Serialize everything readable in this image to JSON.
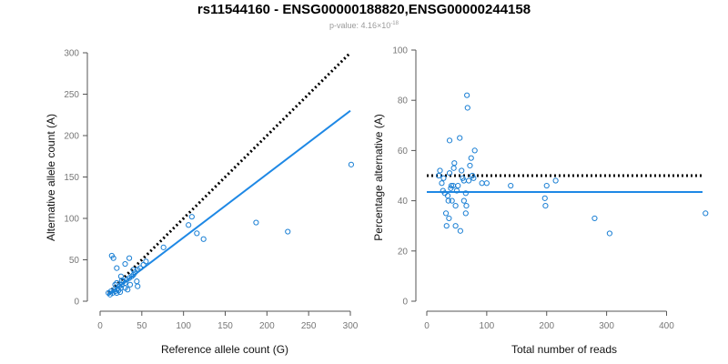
{
  "title": "rs11544160 - ENSG00000188820,ENSG00000244158",
  "subtitle": {
    "prefix": "p-value: 4.16×10",
    "exponent": "-18"
  },
  "colors": {
    "points": "#1a7fd4",
    "fit_line": "#1e88e5",
    "reference_line": "#000000",
    "axis": "#555555",
    "tick_label": "#777777"
  },
  "chart_data": [
    {
      "type": "scatter",
      "xlabel": "Reference allele count (G)",
      "ylabel": "Alternative allele count (A)",
      "xlim": [
        0,
        300
      ],
      "ylim": [
        0,
        300
      ],
      "xticks": [
        0,
        50,
        100,
        150,
        200,
        250,
        300
      ],
      "yticks": [
        0,
        50,
        100,
        150,
        200,
        250,
        300
      ],
      "grid": false,
      "points": [
        [
          10,
          10
        ],
        [
          12,
          8
        ],
        [
          13,
          12
        ],
        [
          15,
          10
        ],
        [
          17,
          14
        ],
        [
          18,
          12
        ],
        [
          20,
          10
        ],
        [
          21,
          15
        ],
        [
          22,
          13
        ],
        [
          24,
          11
        ],
        [
          25,
          16
        ],
        [
          18,
          20
        ],
        [
          20,
          22
        ],
        [
          23,
          18
        ],
        [
          26,
          20
        ],
        [
          28,
          24
        ],
        [
          30,
          22
        ],
        [
          32,
          26
        ],
        [
          35,
          28
        ],
        [
          38,
          30
        ],
        [
          40,
          32
        ],
        [
          42,
          35
        ],
        [
          45,
          38
        ],
        [
          48,
          40
        ],
        [
          52,
          44
        ],
        [
          55,
          48
        ],
        [
          14,
          55
        ],
        [
          16,
          52
        ],
        [
          30,
          45
        ],
        [
          35,
          52
        ],
        [
          40,
          38
        ],
        [
          44,
          24
        ],
        [
          45,
          18
        ],
        [
          36,
          20
        ],
        [
          30,
          16
        ],
        [
          26,
          25
        ],
        [
          33,
          14
        ],
        [
          20,
          40
        ],
        [
          25,
          30
        ],
        [
          76,
          65
        ],
        [
          106,
          92
        ],
        [
          110,
          102
        ],
        [
          116,
          82
        ],
        [
          124,
          75
        ],
        [
          187,
          95
        ],
        [
          225,
          84
        ],
        [
          301,
          165
        ]
      ],
      "fit_line": [
        [
          10,
          8
        ],
        [
          300,
          230
        ]
      ],
      "reference_line": [
        [
          10,
          10
        ],
        [
          300,
          300
        ]
      ]
    },
    {
      "type": "scatter",
      "xlabel": "Total number of reads",
      "ylabel": "Percentage alternative (A)",
      "xlim": [
        0,
        460
      ],
      "ylim": [
        0,
        100
      ],
      "xticks": [
        0,
        100,
        200,
        300,
        400
      ],
      "yticks": [
        0,
        20,
        40,
        60,
        80,
        100
      ],
      "grid": false,
      "points": [
        [
          20,
          50
        ],
        [
          22,
          52
        ],
        [
          25,
          47
        ],
        [
          27,
          44
        ],
        [
          28,
          49
        ],
        [
          30,
          43
        ],
        [
          32,
          35
        ],
        [
          33,
          30
        ],
        [
          35,
          42
        ],
        [
          36,
          40
        ],
        [
          37,
          33
        ],
        [
          38,
          51
        ],
        [
          38,
          64
        ],
        [
          40,
          45
        ],
        [
          41,
          46
        ],
        [
          42,
          40
        ],
        [
          44,
          46
        ],
        [
          45,
          53
        ],
        [
          46,
          55
        ],
        [
          48,
          38
        ],
        [
          48,
          30
        ],
        [
          50,
          44
        ],
        [
          52,
          46
        ],
        [
          55,
          65
        ],
        [
          56,
          28
        ],
        [
          58,
          52
        ],
        [
          60,
          49
        ],
        [
          62,
          40
        ],
        [
          62,
          48
        ],
        [
          65,
          35
        ],
        [
          65,
          43
        ],
        [
          66,
          38
        ],
        [
          67,
          82
        ],
        [
          68,
          77
        ],
        [
          70,
          48
        ],
        [
          72,
          54
        ],
        [
          74,
          57
        ],
        [
          76,
          50
        ],
        [
          78,
          49
        ],
        [
          80,
          60
        ],
        [
          92,
          47
        ],
        [
          100,
          47
        ],
        [
          140,
          46
        ],
        [
          197,
          41
        ],
        [
          198,
          38
        ],
        [
          200,
          46
        ],
        [
          215,
          48
        ],
        [
          280,
          33
        ],
        [
          305,
          27
        ],
        [
          465,
          35
        ]
      ],
      "fit_line": [
        [
          0,
          43.5
        ],
        [
          460,
          43.5
        ]
      ],
      "reference_line": [
        [
          0,
          50
        ],
        [
          460,
          50
        ]
      ]
    }
  ]
}
